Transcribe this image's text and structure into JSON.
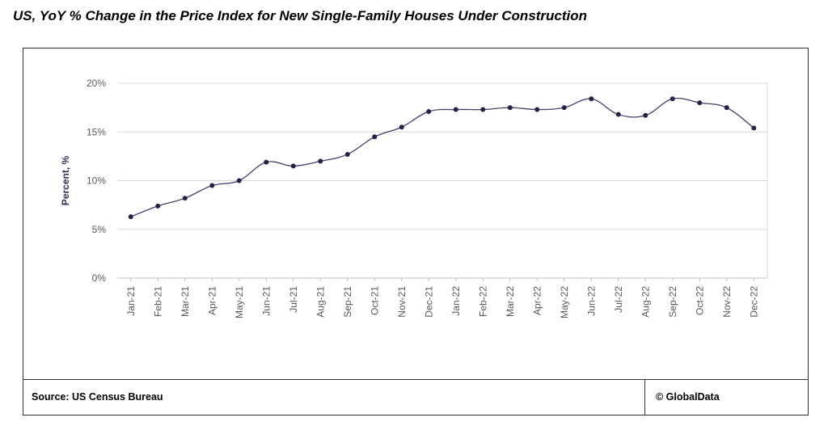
{
  "title": "US, YoY % Change in the Price Index for New Single-Family Houses Under Construction",
  "footer": {
    "source": "Source:  US Census Bureau",
    "copyright": "© GlobalData"
  },
  "colors": {
    "line": "#4b3b6b",
    "marker": "#2a1f45",
    "grid": "#d9d9d9",
    "axis_label": "#3b2a58"
  },
  "chart_data": {
    "type": "line",
    "title": "",
    "xlabel": "",
    "ylabel": "Percent, %",
    "ylim": [
      0,
      20
    ],
    "yticks": [
      0,
      5,
      10,
      15,
      20
    ],
    "ytick_labels": [
      "0%",
      "5%",
      "10%",
      "15%",
      "20%"
    ],
    "grid": true,
    "legend": "none",
    "categories": [
      "Jan-21",
      "Feb-21",
      "Mar-21",
      "Apr-21",
      "May-21",
      "Jun-21",
      "Jul-21",
      "Aug-21",
      "Sep-21",
      "Oct-21",
      "Nov-21",
      "Dec-21",
      "Jan-22",
      "Feb-22",
      "Mar-22",
      "Apr-22",
      "May-22",
      "Jun-22",
      "Jul-22",
      "Aug-22",
      "Sep-22",
      "Oct-22",
      "Nov-22",
      "Dec-22"
    ],
    "series": [
      {
        "values": [
          6.3,
          7.4,
          8.2,
          9.5,
          10.0,
          11.9,
          11.5,
          12.0,
          12.7,
          14.5,
          15.5,
          17.1,
          17.3,
          17.3,
          17.5,
          17.3,
          17.5,
          18.4,
          16.8,
          16.7,
          18.4,
          18.0,
          17.5,
          15.4
        ]
      }
    ]
  }
}
